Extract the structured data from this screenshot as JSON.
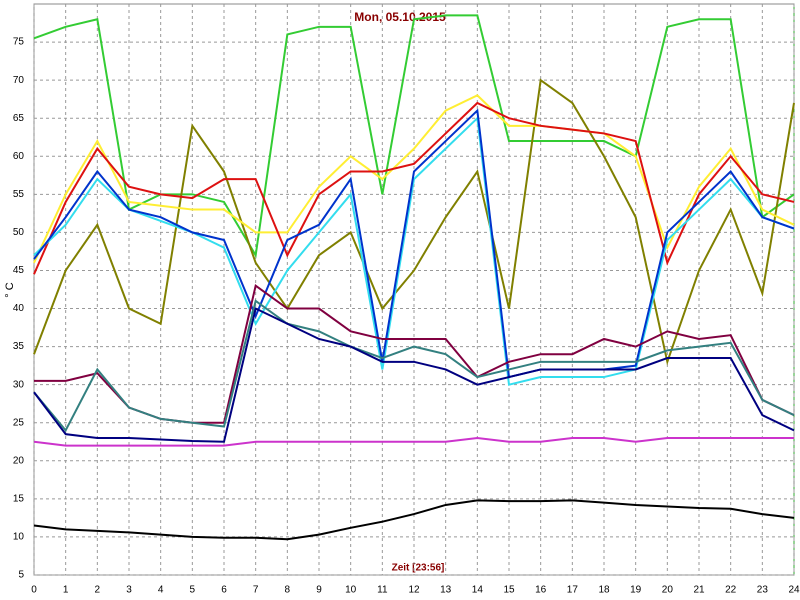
{
  "chart_data": {
    "type": "line",
    "title": "Mon, 05.10.2015",
    "x_label": "Zeit [23:56]",
    "y_label": "° C",
    "x": [
      0,
      1,
      2,
      3,
      4,
      5,
      6,
      7,
      8,
      9,
      10,
      11,
      12,
      13,
      14,
      15,
      16,
      17,
      18,
      19,
      20,
      21,
      22,
      23,
      24
    ],
    "xlim": [
      0,
      24
    ],
    "xticks": [
      0,
      1,
      2,
      3,
      4,
      5,
      6,
      7,
      8,
      9,
      10,
      11,
      12,
      13,
      14,
      15,
      16,
      17,
      18,
      19,
      20,
      21,
      22,
      23,
      24
    ],
    "ylim": [
      5,
      80
    ],
    "yticks": [
      5,
      10,
      15,
      20,
      25,
      30,
      35,
      40,
      45,
      50,
      55,
      60,
      65,
      70,
      75
    ],
    "grid": true,
    "series": [
      {
        "color": "#33cc33",
        "values": [
          75.5,
          77,
          78,
          53,
          55,
          55,
          54,
          47,
          76,
          77,
          77,
          55,
          78,
          78.5,
          78.5,
          62,
          62,
          62,
          62,
          60,
          77,
          78,
          78,
          52,
          55
        ]
      },
      {
        "color": "#808000",
        "values": [
          34,
          45,
          51,
          40,
          38,
          64,
          58,
          46,
          40,
          47,
          50,
          40,
          45,
          52,
          58,
          40,
          70,
          67,
          60,
          52,
          33,
          45,
          53,
          42,
          67
        ]
      },
      {
        "color": "#ffee33",
        "values": [
          46,
          55,
          62,
          54,
          53.5,
          53,
          53,
          50,
          50,
          56,
          60,
          57,
          61,
          66,
          68,
          64,
          64,
          63.5,
          63,
          60,
          48,
          56,
          61,
          53,
          51
        ]
      },
      {
        "color": "#dd1111",
        "values": [
          44.5,
          54,
          61,
          56,
          55,
          54.5,
          57,
          57,
          47,
          55,
          58,
          58,
          59,
          63,
          67,
          65,
          64,
          63.5,
          63,
          62,
          46,
          55,
          60,
          55,
          54
        ]
      },
      {
        "color": "#33ddee",
        "values": [
          47,
          51,
          57,
          53,
          51.5,
          50,
          48,
          38,
          45,
          50,
          55,
          32,
          57,
          61,
          65,
          30,
          31,
          31,
          31,
          32,
          49,
          53,
          57,
          52,
          50.5
        ]
      },
      {
        "color": "#0033cc",
        "values": [
          46.5,
          52,
          58,
          53,
          52,
          50,
          49,
          39,
          49,
          51,
          57,
          33,
          58,
          62,
          66,
          31,
          32,
          32,
          32,
          32.5,
          50,
          54,
          58,
          52,
          50.5
        ]
      },
      {
        "color": "#800040",
        "values": [
          30.5,
          30.5,
          31.5,
          27,
          25.5,
          25,
          25,
          43,
          40,
          40,
          37,
          36,
          36,
          36,
          31,
          33,
          34,
          34,
          36,
          35,
          37,
          36,
          36.5,
          28,
          26
        ]
      },
      {
        "color": "#338080",
        "values": [
          29,
          24,
          32,
          27,
          25.5,
          25,
          24.5,
          41,
          38,
          37,
          35,
          33.5,
          35,
          34,
          31,
          32,
          33,
          33,
          33,
          33,
          34.5,
          35,
          35.5,
          28,
          26
        ]
      },
      {
        "color": "#000080",
        "values": [
          29,
          23.5,
          23,
          23,
          22.8,
          22.6,
          22.5,
          40,
          38,
          36,
          35,
          33,
          33,
          32,
          30,
          31,
          32,
          32,
          32,
          32,
          33.5,
          33.5,
          33.5,
          26,
          24
        ]
      },
      {
        "color": "#cc33cc",
        "values": [
          22.5,
          22,
          22,
          22,
          22,
          22,
          22,
          22.5,
          22.5,
          22.5,
          22.5,
          22.5,
          22.5,
          22.5,
          23,
          22.5,
          22.5,
          23,
          23,
          22.5,
          23,
          23,
          23,
          23,
          23
        ]
      },
      {
        "color": "#000000",
        "values": [
          11.5,
          11,
          10.8,
          10.6,
          10.3,
          10,
          9.9,
          9.9,
          9.7,
          10.3,
          11.2,
          12,
          13,
          14.2,
          14.8,
          14.7,
          14.7,
          14.8,
          14.5,
          14.2,
          14,
          13.8,
          13.7,
          13,
          12.5
        ]
      }
    ]
  }
}
